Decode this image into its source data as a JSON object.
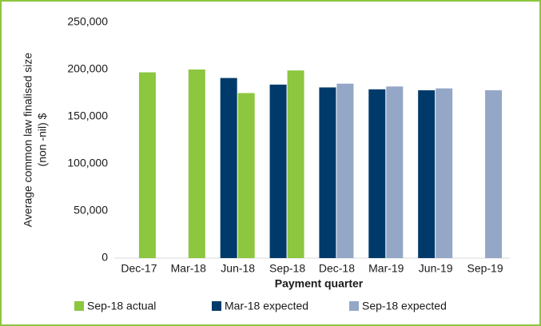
{
  "chart_data": {
    "type": "bar",
    "x_label": "Payment quarter",
    "y_label": [
      "Average common law finalised size",
      "(non -nil) $"
    ],
    "categories": [
      "Dec-17",
      "Mar-18",
      "Jun-18",
      "Sep-18",
      "Dec-18",
      "Mar-19",
      "Jun-19",
      "Sep-19"
    ],
    "series": [
      {
        "name": "Sep-18 actual",
        "color": "#8dc63f",
        "values": [
          197000,
          200000,
          175000,
          199000,
          null,
          null,
          null,
          null
        ]
      },
      {
        "name": "Mar-18 expected",
        "color": "#003a6b",
        "values": [
          null,
          null,
          191000,
          184000,
          181000,
          179000,
          178000,
          null
        ]
      },
      {
        "name": "Sep-18 expected",
        "color": "#94a7c6",
        "values": [
          null,
          null,
          null,
          null,
          185000,
          182000,
          180000,
          178000
        ]
      }
    ],
    "ylim": [
      0,
      250000
    ],
    "yticks": [
      0,
      {
        "value": 50000,
        "label": "50,000"
      },
      {
        "value": 100000,
        "label": "100,000"
      },
      {
        "value": 150000,
        "label": "150,000"
      },
      {
        "value": 200000,
        "label": "200,000"
      },
      {
        "value": 250000,
        "label": "250,000"
      }
    ],
    "grid": false,
    "legend": "bottom"
  }
}
